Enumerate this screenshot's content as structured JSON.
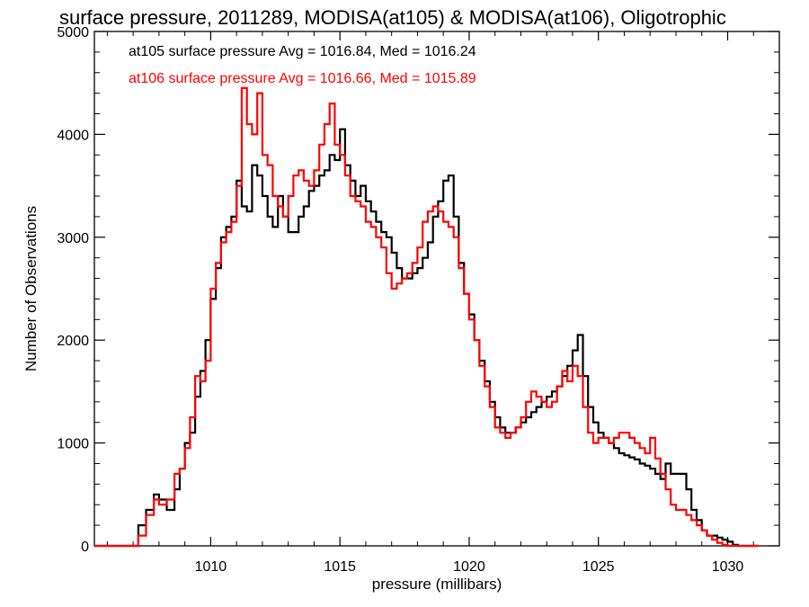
{
  "chart_data": {
    "type": "line",
    "title": "surface pressure, 2011289, MODISA(at105) & MODISA(at106), Oligotrophic",
    "xlabel": "pressure (millibars)",
    "ylabel": "Number of Observations",
    "xlim": [
      1005.5,
      1032
    ],
    "ylim": [
      0,
      5000
    ],
    "xticks": [
      1010,
      1015,
      1020,
      1025,
      1030
    ],
    "xtick_labels": [
      "1010",
      "1015",
      "1020",
      "1025",
      "1030"
    ],
    "yticks": [
      0,
      1000,
      2000,
      3000,
      4000,
      5000
    ],
    "ytick_labels": [
      "0",
      "1000",
      "2000",
      "3000",
      "4000",
      "5000"
    ],
    "legend_placement": "top-left",
    "step_style": "histogram",
    "series": [
      {
        "name": "at105 surface pressure Avg = 1016.84, Med = 1016.24",
        "color": "#000000",
        "x": [
          1005.5,
          1006.5,
          1007.0,
          1007.2,
          1007.5,
          1007.8,
          1008.0,
          1008.3,
          1008.6,
          1008.8,
          1009.0,
          1009.2,
          1009.4,
          1009.6,
          1009.8,
          1010.0,
          1010.2,
          1010.4,
          1010.6,
          1010.8,
          1011.0,
          1011.2,
          1011.4,
          1011.6,
          1011.8,
          1012.0,
          1012.2,
          1012.4,
          1012.6,
          1012.8,
          1013.0,
          1013.2,
          1013.4,
          1013.6,
          1013.8,
          1014.0,
          1014.2,
          1014.4,
          1014.6,
          1014.8,
          1015.0,
          1015.2,
          1015.4,
          1015.6,
          1015.8,
          1016.0,
          1016.2,
          1016.4,
          1016.6,
          1016.8,
          1017.0,
          1017.2,
          1017.4,
          1017.6,
          1017.8,
          1018.0,
          1018.2,
          1018.4,
          1018.6,
          1018.8,
          1019.0,
          1019.2,
          1019.4,
          1019.6,
          1019.8,
          1020.0,
          1020.2,
          1020.4,
          1020.6,
          1020.8,
          1021.0,
          1021.2,
          1021.4,
          1021.6,
          1021.8,
          1022.0,
          1022.2,
          1022.4,
          1022.6,
          1022.8,
          1023.0,
          1023.2,
          1023.4,
          1023.6,
          1023.8,
          1024.0,
          1024.2,
          1024.4,
          1024.6,
          1024.8,
          1025.0,
          1025.2,
          1025.4,
          1025.6,
          1025.8,
          1026.0,
          1026.2,
          1026.4,
          1026.6,
          1026.8,
          1027.0,
          1027.2,
          1027.4,
          1027.6,
          1027.8,
          1028.0,
          1028.2,
          1028.4,
          1028.6,
          1028.8,
          1029.0,
          1029.2,
          1029.4,
          1029.6,
          1029.8,
          1030.0,
          1030.2,
          1030.4,
          1030.6,
          1030.8,
          1031.0
        ],
        "y": [
          0,
          0,
          0,
          200,
          350,
          500,
          450,
          350,
          550,
          750,
          1000,
          1100,
          1450,
          1700,
          2000,
          2400,
          2700,
          3000,
          3100,
          3200,
          3550,
          3300,
          3250,
          3700,
          3600,
          3400,
          3200,
          3100,
          3400,
          3200,
          3050,
          3050,
          3200,
          3300,
          3450,
          3500,
          3600,
          3650,
          3800,
          3750,
          4050,
          3700,
          3550,
          3400,
          3500,
          3350,
          3250,
          3150,
          3050,
          3000,
          2850,
          2700,
          2600,
          2600,
          2650,
          2700,
          2800,
          2950,
          3200,
          3350,
          3550,
          3600,
          3200,
          2750,
          2450,
          2250,
          2000,
          1800,
          1600,
          1400,
          1250,
          1150,
          1100,
          1100,
          1150,
          1200,
          1250,
          1300,
          1350,
          1400,
          1450,
          1500,
          1550,
          1650,
          1750,
          1900,
          2050,
          1650,
          1350,
          1200,
          1100,
          1050,
          1000,
          950,
          900,
          880,
          860,
          840,
          800,
          780,
          750,
          700,
          650,
          800,
          700,
          700,
          700,
          550,
          350,
          250,
          150,
          100,
          100,
          80,
          60,
          40,
          10,
          0,
          0,
          0,
          0
        ]
      },
      {
        "name": "at106 surface pressure Avg = 1016.66, Med = 1015.89",
        "color": "#ff0000",
        "x": [
          1005.5,
          1006.5,
          1007.0,
          1007.2,
          1007.5,
          1007.8,
          1008.0,
          1008.3,
          1008.6,
          1008.8,
          1009.0,
          1009.2,
          1009.4,
          1009.6,
          1009.8,
          1010.0,
          1010.2,
          1010.4,
          1010.6,
          1010.8,
          1011.0,
          1011.2,
          1011.4,
          1011.6,
          1011.8,
          1012.0,
          1012.2,
          1012.4,
          1012.6,
          1012.8,
          1013.0,
          1013.2,
          1013.4,
          1013.6,
          1013.8,
          1014.0,
          1014.2,
          1014.4,
          1014.6,
          1014.8,
          1015.0,
          1015.2,
          1015.4,
          1015.6,
          1015.8,
          1016.0,
          1016.2,
          1016.4,
          1016.6,
          1016.8,
          1017.0,
          1017.2,
          1017.4,
          1017.6,
          1017.8,
          1018.0,
          1018.2,
          1018.4,
          1018.6,
          1018.8,
          1019.0,
          1019.2,
          1019.4,
          1019.6,
          1019.8,
          1020.0,
          1020.2,
          1020.4,
          1020.6,
          1020.8,
          1021.0,
          1021.2,
          1021.4,
          1021.6,
          1021.8,
          1022.0,
          1022.2,
          1022.4,
          1022.6,
          1022.8,
          1023.0,
          1023.2,
          1023.4,
          1023.6,
          1023.8,
          1024.0,
          1024.2,
          1024.4,
          1024.6,
          1024.8,
          1025.0,
          1025.2,
          1025.4,
          1025.6,
          1025.8,
          1026.0,
          1026.2,
          1026.4,
          1026.6,
          1026.8,
          1027.0,
          1027.2,
          1027.4,
          1027.6,
          1027.8,
          1028.0,
          1028.2,
          1028.4,
          1028.6,
          1028.8,
          1029.0,
          1029.2,
          1029.4,
          1029.6,
          1029.8,
          1030.0,
          1030.2,
          1030.4,
          1030.6,
          1030.8,
          1031.0
        ],
        "y": [
          0,
          0,
          0,
          100,
          300,
          450,
          400,
          450,
          700,
          750,
          950,
          1250,
          1650,
          1600,
          1800,
          2500,
          2750,
          2950,
          3050,
          3150,
          3500,
          4450,
          4100,
          4000,
          4400,
          3800,
          3700,
          3400,
          3300,
          3200,
          3400,
          3600,
          3650,
          3550,
          3500,
          3650,
          3900,
          4100,
          4300,
          3900,
          3800,
          3600,
          3400,
          3350,
          3300,
          3150,
          3100,
          3000,
          2900,
          2650,
          2500,
          2550,
          2600,
          2650,
          2750,
          2900,
          3150,
          3250,
          3300,
          3250,
          3150,
          3100,
          3000,
          2700,
          2450,
          2200,
          2000,
          1750,
          1550,
          1350,
          1150,
          1100,
          1050,
          1100,
          1150,
          1250,
          1400,
          1500,
          1450,
          1400,
          1350,
          1400,
          1550,
          1700,
          1600,
          1750,
          1650,
          1350,
          1100,
          1000,
          1050,
          1050,
          1000,
          1050,
          1100,
          1100,
          1050,
          1000,
          950,
          900,
          1050,
          850,
          700,
          550,
          400,
          350,
          350,
          300,
          250,
          200,
          150,
          100,
          60,
          30,
          10,
          0,
          0,
          0,
          0,
          0,
          0
        ]
      }
    ]
  }
}
